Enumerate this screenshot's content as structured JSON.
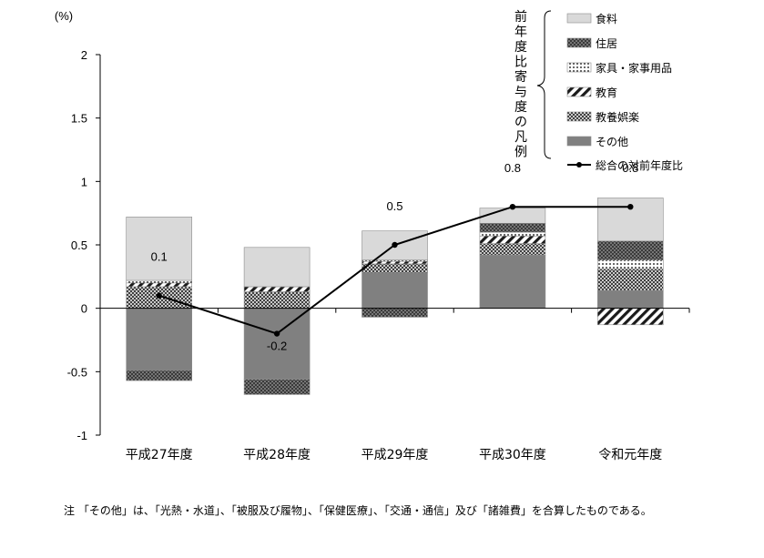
{
  "chart_data": {
    "type": "bar",
    "stacked": true,
    "unit_label": "(%)",
    "categories": [
      "平成27年度",
      "平成28年度",
      "平成29年度",
      "平成30年度",
      "令和元年度"
    ],
    "ylim": [
      -1,
      2
    ],
    "yticks": [
      2,
      1.5,
      1,
      0.5,
      0,
      -0.5,
      -1
    ],
    "ytick_labels": [
      "2",
      "1.5",
      "1",
      "0.5",
      "0",
      "-0.5",
      "-1"
    ],
    "grid": false,
    "legend_position": "top-right",
    "legend_title": "前年度比寄与度の凡例",
    "series": [
      {
        "name": "食料",
        "pattern": "light",
        "values": [
          0.5,
          0.31,
          0.23,
          0.12,
          0.34
        ]
      },
      {
        "name": "住居",
        "pattern": "dots-dark",
        "values": [
          -0.08,
          -0.12,
          -0.07,
          0.07,
          0.15
        ]
      },
      {
        "name": "家具・家事用品",
        "pattern": "white-dots",
        "values": [
          0.02,
          0.0,
          0.01,
          0.03,
          0.07
        ]
      },
      {
        "name": "教育",
        "pattern": "diagonal",
        "values": [
          0.03,
          0.04,
          0.02,
          0.06,
          -0.13
        ]
      },
      {
        "name": "教養娯楽",
        "pattern": "crosshatch",
        "values": [
          0.17,
          0.13,
          0.07,
          0.09,
          0.17
        ]
      },
      {
        "name": "その他",
        "pattern": "gray",
        "values": [
          -0.49,
          -0.56,
          0.28,
          0.42,
          0.14
        ]
      }
    ],
    "line": {
      "name": "総合の対前年度比",
      "values": [
        0.1,
        -0.2,
        0.5,
        0.8,
        0.8
      ],
      "labels": [
        "0.1",
        "-0.2",
        "0.5",
        "0.8",
        "0.8"
      ]
    },
    "colors": {
      "light": "#d9d9d9",
      "dark": "#404040",
      "gray": "#808080",
      "line": "#000000"
    }
  },
  "note": "注 「その他」は、「光熱・水道」、「被服及び履物」、「保健医療」、「交通・通信」及び「諸雑費」を合算したものである。"
}
